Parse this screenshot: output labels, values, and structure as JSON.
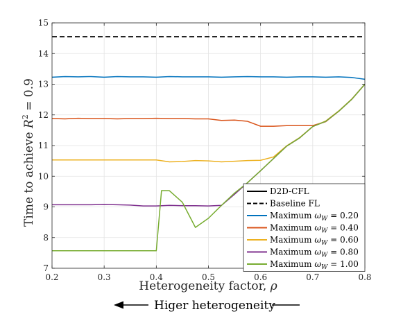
{
  "chart_data": {
    "type": "line",
    "xlabel_text": "Heterogeneity factor, ",
    "xlabel_symbol": "ρ",
    "ylabel_text": "Time to achieve ",
    "ylabel_symbol": "R",
    "ylabel_exp": "2",
    "ylabel_suffix": " = 0.9",
    "xlim": [
      0.2,
      0.8
    ],
    "ylim": [
      7,
      15
    ],
    "xticks": [
      0.2,
      0.3,
      0.4,
      0.5,
      0.6,
      0.7,
      0.8
    ],
    "yticks": [
      7,
      8,
      9,
      10,
      11,
      12,
      13,
      14,
      15
    ],
    "xtick_labels": [
      "0.2",
      "0.3",
      "0.4",
      "0.5",
      "0.6",
      "0.7",
      "0.8"
    ],
    "ytick_labels": [
      "7",
      "8",
      "9",
      "10",
      "11",
      "12",
      "13",
      "14",
      "15"
    ],
    "grid": true,
    "legend_position": "bottom-right",
    "footer_text": "Higer heterogeneity",
    "series": [
      {
        "name": "D2D-CFL",
        "legend_only": true,
        "color": "#000000",
        "dash": "solid",
        "values": []
      },
      {
        "name": "Baseline FL",
        "color": "#000000",
        "dash": "dashed",
        "x": [
          0.2,
          0.8
        ],
        "values": [
          14.55,
          14.55
        ]
      },
      {
        "name": "Maximum ω_W = 0.20",
        "color": "#0072BD",
        "dash": "solid",
        "x": [
          0.2,
          0.225,
          0.25,
          0.275,
          0.3,
          0.325,
          0.35,
          0.375,
          0.4,
          0.425,
          0.45,
          0.475,
          0.5,
          0.525,
          0.55,
          0.575,
          0.6,
          0.625,
          0.65,
          0.675,
          0.7,
          0.725,
          0.75,
          0.775,
          0.8
        ],
        "values": [
          13.23,
          13.25,
          13.24,
          13.25,
          13.23,
          13.25,
          13.24,
          13.24,
          13.23,
          13.25,
          13.24,
          13.24,
          13.24,
          13.23,
          13.24,
          13.25,
          13.24,
          13.24,
          13.23,
          13.24,
          13.24,
          13.23,
          13.24,
          13.22,
          13.16
        ]
      },
      {
        "name": "Maximum ω_W = 0.40",
        "color": "#D95319",
        "dash": "solid",
        "x": [
          0.2,
          0.225,
          0.25,
          0.275,
          0.3,
          0.325,
          0.35,
          0.375,
          0.4,
          0.425,
          0.45,
          0.475,
          0.5,
          0.525,
          0.55,
          0.575,
          0.6,
          0.625,
          0.65,
          0.675,
          0.7,
          0.725,
          0.75,
          0.775,
          0.8
        ],
        "values": [
          11.88,
          11.87,
          11.89,
          11.88,
          11.88,
          11.87,
          11.88,
          11.88,
          11.89,
          11.88,
          11.88,
          11.87,
          11.87,
          11.82,
          11.83,
          11.79,
          11.63,
          11.63,
          11.65,
          11.65,
          11.65,
          11.78,
          12.12,
          12.51,
          13.0
        ]
      },
      {
        "name": "Maximum ω_W = 0.60",
        "color": "#EDB120",
        "dash": "solid",
        "x": [
          0.2,
          0.225,
          0.25,
          0.275,
          0.3,
          0.325,
          0.35,
          0.375,
          0.4,
          0.425,
          0.45,
          0.475,
          0.5,
          0.525,
          0.55,
          0.575,
          0.6,
          0.625,
          0.65,
          0.675,
          0.7,
          0.725,
          0.75,
          0.775,
          0.8
        ],
        "values": [
          10.53,
          10.53,
          10.53,
          10.53,
          10.53,
          10.53,
          10.53,
          10.53,
          10.53,
          10.47,
          10.48,
          10.51,
          10.5,
          10.47,
          10.49,
          10.51,
          10.52,
          10.63,
          10.99,
          11.26,
          11.62,
          11.8,
          12.13,
          12.52,
          13.0
        ]
      },
      {
        "name": "Maximum ω_W = 0.80",
        "color": "#7E2F8E",
        "dash": "solid",
        "x": [
          0.2,
          0.225,
          0.25,
          0.275,
          0.3,
          0.325,
          0.35,
          0.375,
          0.4,
          0.425,
          0.45,
          0.475,
          0.5,
          0.525,
          0.55,
          0.575,
          0.6,
          0.625,
          0.65,
          0.675,
          0.7,
          0.725,
          0.75,
          0.775,
          0.8
        ],
        "values": [
          9.07,
          9.07,
          9.07,
          9.07,
          9.08,
          9.07,
          9.06,
          9.03,
          9.03,
          9.05,
          9.04,
          9.04,
          9.03,
          9.05,
          9.41,
          9.79,
          10.18,
          10.58,
          10.98,
          11.25,
          11.62,
          11.79,
          12.12,
          12.51,
          13.0
        ]
      },
      {
        "name": "Maximum ω_W = 1.00",
        "color": "#77AC30",
        "dash": "solid",
        "x": [
          0.2,
          0.225,
          0.25,
          0.275,
          0.3,
          0.325,
          0.35,
          0.375,
          0.4,
          0.41,
          0.425,
          0.45,
          0.475,
          0.5,
          0.525,
          0.55,
          0.575,
          0.6,
          0.625,
          0.65,
          0.675,
          0.7,
          0.725,
          0.75,
          0.775,
          0.8
        ],
        "values": [
          7.57,
          7.57,
          7.57,
          7.57,
          7.57,
          7.57,
          7.57,
          7.57,
          7.57,
          9.53,
          9.53,
          9.15,
          8.33,
          8.63,
          9.05,
          9.45,
          9.79,
          10.18,
          10.58,
          10.98,
          11.25,
          11.62,
          11.79,
          12.12,
          12.51,
          13.0
        ]
      }
    ]
  }
}
